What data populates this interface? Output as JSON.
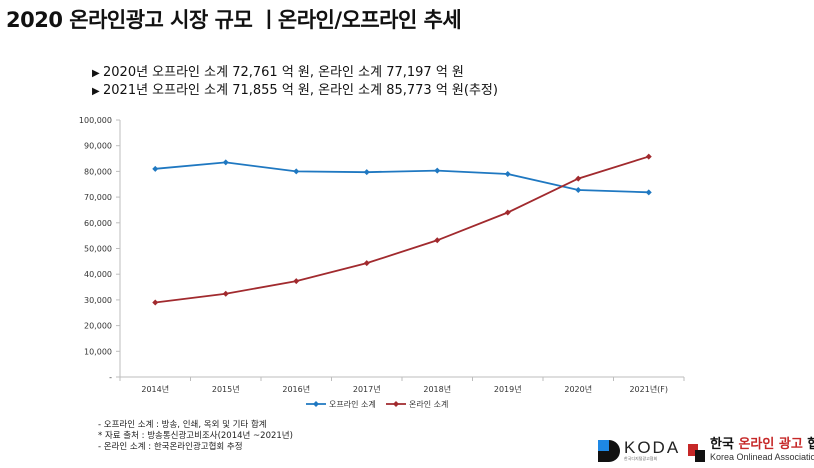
{
  "title": "2020 온라인광고 시장 규모 ㅣ온라인/오프라인 추세",
  "bullets": [
    "2020년 오프라인 소계 72,761 억 원, 온라인 소계 77,197 억 원",
    "2021년 오프라인 소계 71,855 억 원, 온라인 소계 85,773 억 원(추정)"
  ],
  "bullet_marker": "▶",
  "notes": [
    "-  오프라인 소계 : 방송, 인쇄, 옥외 및 기타 합계",
    "* 자료 출처 : 방송통신광고비조사(2014년 ~2021년)",
    "-  온라인 소계 : 한국온라인광고협회 추정"
  ],
  "logos": {
    "koda": {
      "name": "KODA",
      "sub": "한국디지털광고협회"
    },
    "kola": {
      "korean_a": "한국 ",
      "korean_b": "온라인 광고",
      "korean_c": " 협회",
      "english": "Korea Onlinead Association"
    }
  },
  "chart_data": {
    "type": "line",
    "categories": [
      "2014년",
      "2015년",
      "2016년",
      "2017년",
      "2018년",
      "2019년",
      "2020년",
      "2021년(F)"
    ],
    "series": [
      {
        "name": "오프라인 소계",
        "color": "#1f78c1",
        "marker": "diamond",
        "values": [
          81000,
          83500,
          80000,
          79700,
          80300,
          79000,
          72761,
          71855
        ]
      },
      {
        "name": "온라인 소계",
        "color": "#a12a2e",
        "marker": "diamond",
        "values": [
          29000,
          32400,
          37300,
          44300,
          53200,
          64000,
          77197,
          85773
        ]
      }
    ],
    "ylim": [
      0,
      100000
    ],
    "yticks": [
      0,
      10000,
      20000,
      30000,
      40000,
      50000,
      60000,
      70000,
      80000,
      90000,
      100000
    ],
    "ytick_labels": [
      "-",
      "10,000",
      "20,000",
      "30,000",
      "40,000",
      "50,000",
      "60,000",
      "70,000",
      "80,000",
      "90,000",
      "100,000"
    ],
    "legend_position": "bottom",
    "grid": false
  }
}
